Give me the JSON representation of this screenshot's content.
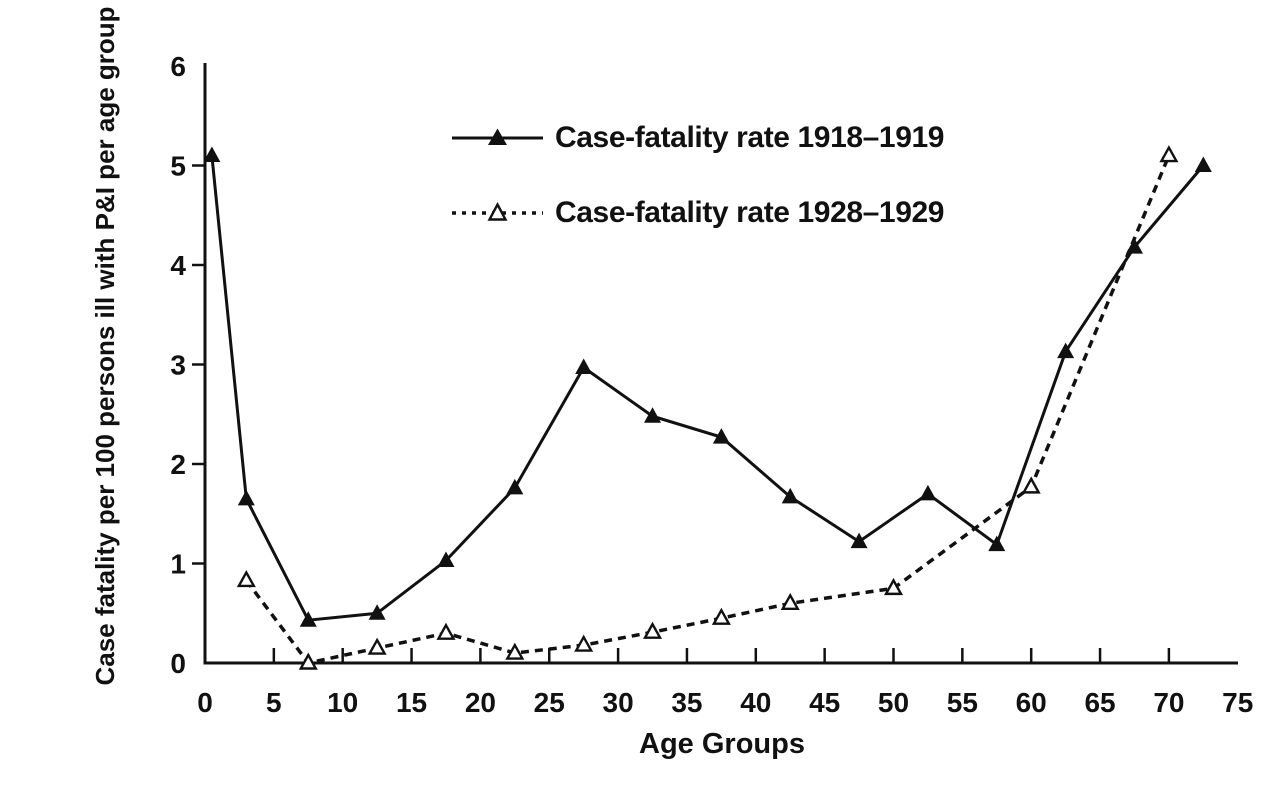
{
  "figure": {
    "background": "#ffffff",
    "ink_color": "#111111"
  },
  "chart_data": {
    "type": "line",
    "title": "",
    "xlabel": "Age Groups",
    "ylabel": "Case fatality per 100 persons ill with P&I per age group",
    "xlim": [
      0,
      75
    ],
    "ylim": [
      0,
      6
    ],
    "x_ticks": [
      0,
      5,
      10,
      15,
      20,
      25,
      30,
      35,
      40,
      45,
      50,
      55,
      60,
      65,
      70,
      75
    ],
    "y_ticks": [
      0,
      1,
      2,
      3,
      4,
      5,
      6
    ],
    "grid": false,
    "legend_position": "top-center-inside",
    "series": [
      {
        "name": "Case-fatality rate 1918–1919",
        "line_style": "solid",
        "marker": "filled-triangle",
        "color": "#111111",
        "x": [
          0.5,
          3,
          7.5,
          12.5,
          17.5,
          22.5,
          27.5,
          32.5,
          37.5,
          42.5,
          47.5,
          52.5,
          57.5,
          62.5,
          67.5,
          72.5
        ],
        "y": [
          5.1,
          1.65,
          0.43,
          0.5,
          1.03,
          1.76,
          2.97,
          2.48,
          2.27,
          1.67,
          1.22,
          1.7,
          1.19,
          3.13,
          4.18,
          5.0
        ]
      },
      {
        "name": "Case-fatality rate 1928–1929",
        "line_style": "dashed",
        "marker": "open-triangle",
        "color": "#111111",
        "x": [
          3,
          7.5,
          12.5,
          17.5,
          22.5,
          27.5,
          32.5,
          37.5,
          42.5,
          50,
          60,
          70
        ],
        "y": [
          0.83,
          0.0,
          0.15,
          0.3,
          0.1,
          0.18,
          0.31,
          0.45,
          0.6,
          0.75,
          1.77,
          5.1
        ]
      }
    ]
  }
}
